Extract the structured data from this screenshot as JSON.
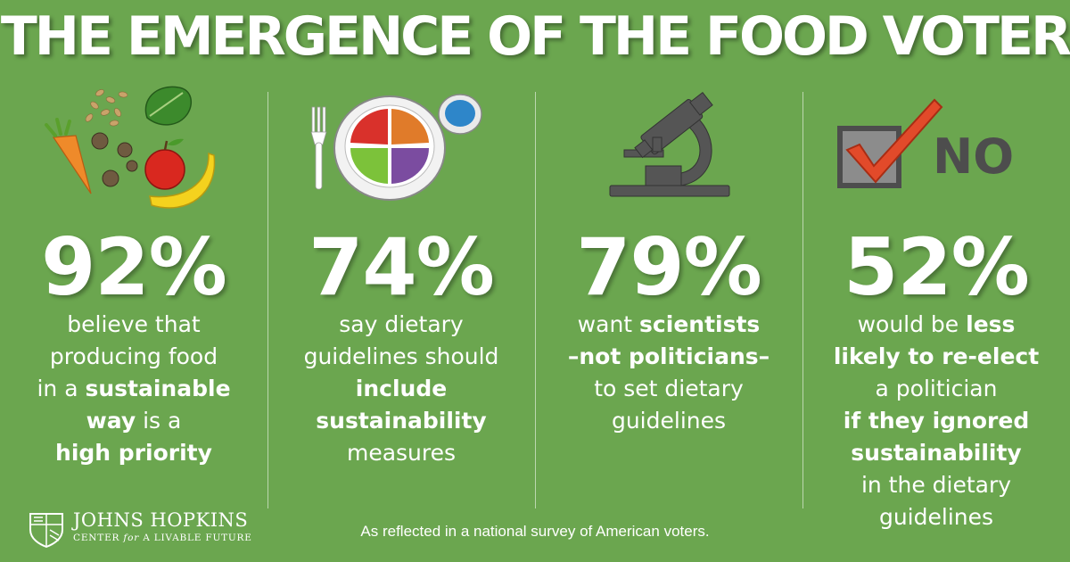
{
  "title": "THE EMERGENCE OF THE FOOD VOTER",
  "columns": [
    {
      "icon": "produce-icon",
      "stat": "92%",
      "lines": [
        [
          {
            "t": "believe that",
            "b": false
          }
        ],
        [
          {
            "t": "producing food",
            "b": false
          }
        ],
        [
          {
            "t": "in a ",
            "b": false
          },
          {
            "t": "sustainable",
            "b": true
          }
        ],
        [
          {
            "t": "way",
            "b": true
          },
          {
            "t": " is a",
            "b": false
          }
        ],
        [
          {
            "t": "high priority",
            "b": true
          }
        ]
      ]
    },
    {
      "icon": "plate-icon",
      "stat": "74%",
      "lines": [
        [
          {
            "t": "say dietary",
            "b": false
          }
        ],
        [
          {
            "t": "guidelines should",
            "b": false
          }
        ],
        [
          {
            "t": "include",
            "b": true
          }
        ],
        [
          {
            "t": "sustainability",
            "b": true
          }
        ],
        [
          {
            "t": "measures",
            "b": false
          }
        ]
      ]
    },
    {
      "icon": "microscope-icon",
      "stat": "79%",
      "lines": [
        [
          {
            "t": "want ",
            "b": false
          },
          {
            "t": "scientists",
            "b": true
          }
        ],
        [
          {
            "t": "–not politicians–",
            "b": true
          }
        ],
        [
          {
            "t": "to set dietary",
            "b": false
          }
        ],
        [
          {
            "t": "guidelines",
            "b": false
          }
        ]
      ]
    },
    {
      "icon": "checkbox-no-icon",
      "icon_label": "NO",
      "stat": "52%",
      "lines": [
        [
          {
            "t": "would be ",
            "b": false
          },
          {
            "t": "less",
            "b": true
          }
        ],
        [
          {
            "t": "likely to re-elect",
            "b": true
          }
        ],
        [
          {
            "t": "a politician",
            "b": false
          }
        ],
        [
          {
            "t": "if they ignored",
            "b": true
          }
        ],
        [
          {
            "t": "sustainability",
            "b": true
          }
        ],
        [
          {
            "t": "in the dietary",
            "b": false
          }
        ],
        [
          {
            "t": "guidelines",
            "b": false
          }
        ]
      ]
    }
  ],
  "footer": {
    "logo_line1": "JOHNS HOPKINS",
    "logo_line2_pre": "CENTER",
    "logo_line2_italic": "for",
    "logo_line2_post": "A LIVABLE FUTURE",
    "note": "As reflected in a national survey of American voters."
  },
  "colors": {
    "background": "#6ba64f",
    "checkmark": "#e24a2a",
    "plate_red": "#d9312b",
    "plate_orange": "#e07b2a",
    "plate_green": "#7cc23a",
    "plate_purple": "#7b4ca0",
    "plate_blue": "#2e86c9",
    "microscope": "#555555"
  }
}
